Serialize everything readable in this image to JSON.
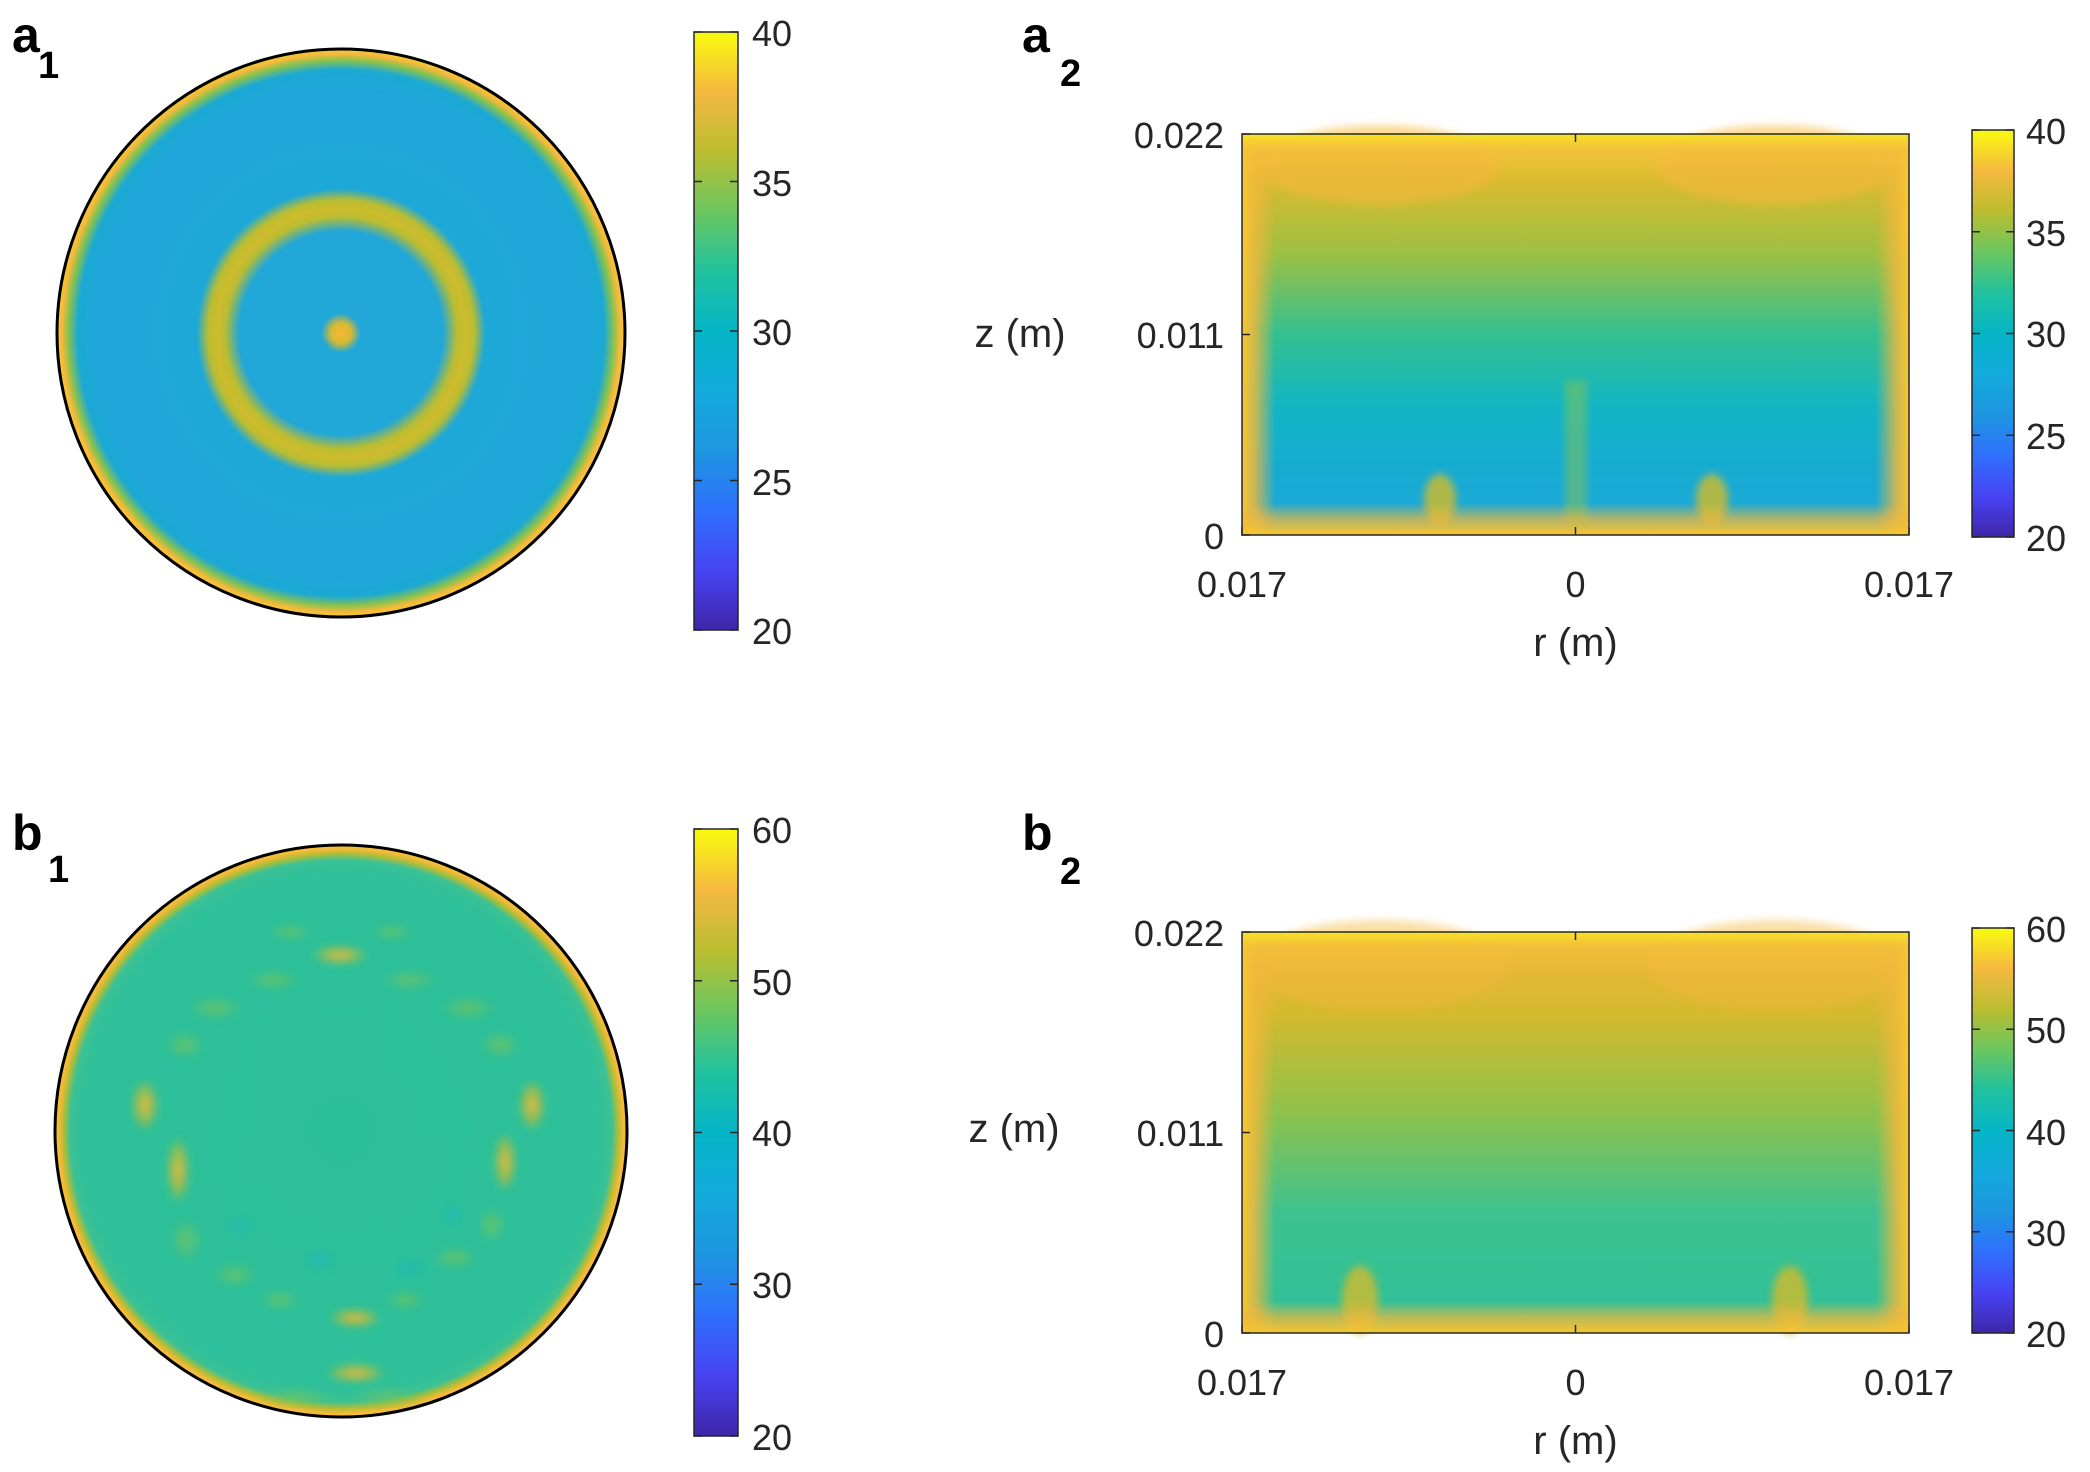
{
  "colormap": [
    "#3e26a8",
    "#4743f4",
    "#2f70fd",
    "#1d96e0",
    "#05b5c6",
    "#21c29e",
    "#6bc65f",
    "#bbbd2f",
    "#f5b940",
    "#fadb2c",
    "#f9fb0e"
  ],
  "panels": [
    {
      "id": "a1",
      "label_letter": "a",
      "label_sub": "1",
      "type": "heatmap",
      "view": "top",
      "colorbar": {
        "range": [
          20,
          40
        ],
        "ticks": [
          "40",
          "35",
          "30",
          "25",
          "20"
        ]
      }
    },
    {
      "id": "a2",
      "label_letter": "a",
      "label_sub": "2",
      "type": "heatmap",
      "view": "side",
      "xlabel": "r (m)",
      "ylabel": "z (m)",
      "xticks": [
        "0.017",
        "0",
        "0.017"
      ],
      "yticks": [
        "0.022",
        "0.011",
        "0"
      ],
      "colorbar": {
        "range": [
          20,
          40
        ],
        "ticks": [
          "40",
          "35",
          "30",
          "25",
          "20"
        ]
      }
    },
    {
      "id": "b1",
      "label_letter": "b",
      "label_sub": "1",
      "type": "heatmap",
      "view": "top",
      "colorbar": {
        "range": [
          20,
          60
        ],
        "ticks": [
          "60",
          "50",
          "40",
          "30",
          "20"
        ]
      }
    },
    {
      "id": "b2",
      "label_letter": "b",
      "label_sub": "2",
      "type": "heatmap",
      "view": "side",
      "xlabel": "r (m)",
      "ylabel": "z (m)",
      "xticks": [
        "0.017",
        "0",
        "0.017"
      ],
      "yticks": [
        "0.022",
        "0.011",
        "0"
      ],
      "colorbar": {
        "range": [
          20,
          60
        ],
        "ticks": [
          "60",
          "50",
          "40",
          "30",
          "20"
        ]
      }
    }
  ],
  "chart_data": [
    {
      "type": "heatmap",
      "panel": "a1",
      "description_values": {
        "background": 29,
        "rim": 37,
        "center_spot": 36,
        "ring": 35
      },
      "colorbar_range": [
        20,
        40
      ]
    },
    {
      "type": "heatmap",
      "panel": "a2",
      "xlabel": "r (m)",
      "ylabel": "z (m)",
      "xlim": [
        -0.017,
        0.017
      ],
      "ylim": [
        0,
        0.022
      ],
      "colorbar_range": [
        20,
        40
      ]
    },
    {
      "type": "heatmap",
      "panel": "b1",
      "description_values": {
        "background": 42,
        "rim": 52,
        "hot_spots": 51
      },
      "colorbar_range": [
        20,
        60
      ]
    },
    {
      "type": "heatmap",
      "panel": "b2",
      "xlabel": "r (m)",
      "ylabel": "z (m)",
      "xlim": [
        -0.017,
        0.017
      ],
      "ylim": [
        0,
        0.022
      ],
      "colorbar_range": [
        20,
        60
      ]
    }
  ]
}
